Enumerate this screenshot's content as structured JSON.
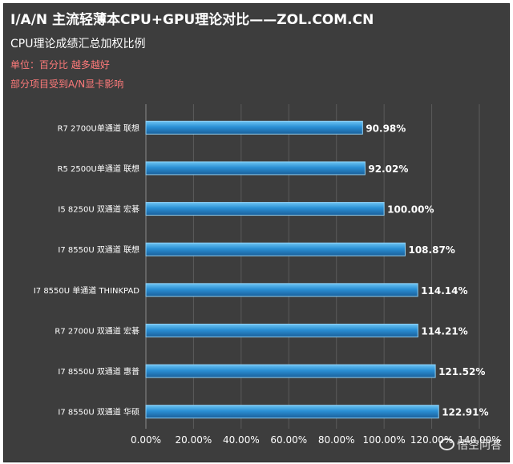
{
  "header": {
    "title": "I/A/N 主流轻薄本CPU+GPU理论对比——ZOL.COM.CN",
    "subtitle": "CPU理论成绩汇总加权比例",
    "note1": "单位：百分比  越多越好",
    "note2": "部分项目受到A/N显卡影响"
  },
  "colors": {
    "bar": "#2a8fd4",
    "background": "#3d3d3d",
    "note": "#ff7a7a"
  },
  "watermark": {
    "text": "悟空问答",
    "icon": "speech-bubble-icon"
  },
  "chart_data": {
    "type": "bar",
    "orientation": "horizontal",
    "categories": [
      "R7 2700U单通道 联想",
      "R5 2500U单通道 联想",
      "I5 8250U 双通道 宏碁",
      "I7 8550U 双通道 联想",
      "I7 8550U 单通道 THINKPAD",
      "R7 2700U 双通道 宏碁",
      "I7 8550U 双通道 惠普",
      "I7 8550U  双通道 华硕"
    ],
    "values": [
      90.98,
      92.02,
      100.0,
      108.87,
      114.14,
      114.21,
      121.52,
      122.91
    ],
    "value_labels": [
      "90.98%",
      "92.02%",
      "100.00%",
      "108.87%",
      "114.14%",
      "114.21%",
      "121.52%",
      "122.91%"
    ],
    "xlim": [
      0,
      140
    ],
    "x_ticks": [
      0,
      20,
      40,
      60,
      80,
      100,
      120,
      140
    ],
    "x_tick_labels": [
      "0.00%",
      "20.00%",
      "40.00%",
      "60.00%",
      "80.00%",
      "100.00%",
      "120.00%",
      "140.00%"
    ],
    "grid": true,
    "legend": "none"
  }
}
